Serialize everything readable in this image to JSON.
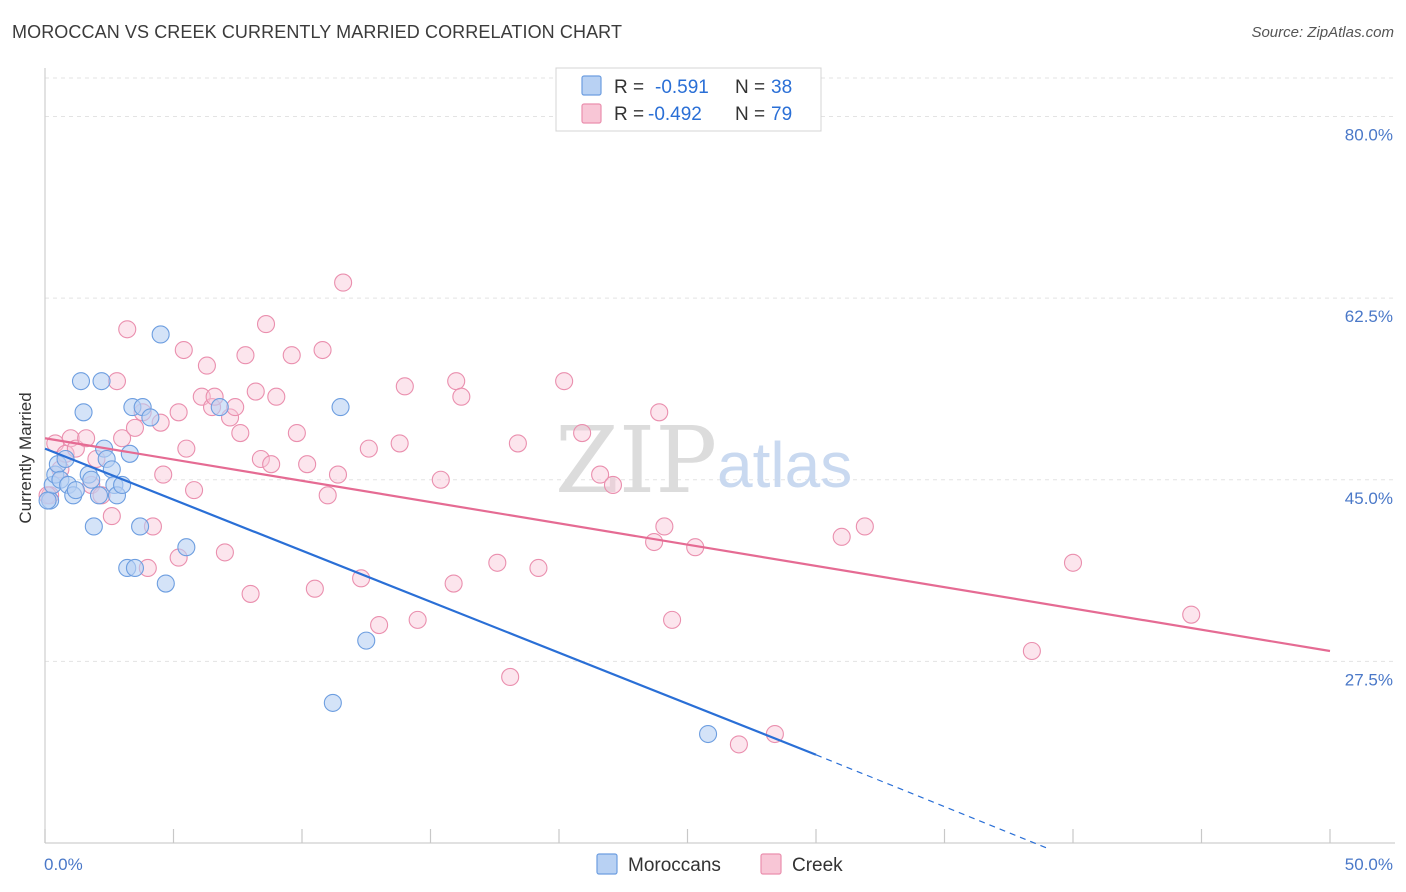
{
  "title": "MOROCCAN VS CREEK CURRENTLY MARRIED CORRELATION CHART",
  "source": "Source: ZipAtlas.com",
  "colors": {
    "moroccans_fill": "#b8d1f3",
    "moroccans_stroke": "#6d9ee0",
    "moroccans_line": "#2a6fd6",
    "creek_fill": "#f8c6d6",
    "creek_stroke": "#ea8fae",
    "creek_line": "#e56b93",
    "tick_text": "#4a78c8",
    "value_text": "#2a6fd6"
  },
  "legend": {
    "r_label": "R =",
    "n_label": "N =",
    "rows": [
      {
        "series": "Moroccans",
        "r": "-0.591",
        "n": "38"
      },
      {
        "series": "Creek",
        "r": "-0.492",
        "n": "79"
      }
    ]
  },
  "watermark": {
    "zip": "ZIP",
    "atlas": "atlas"
  },
  "chart_data": {
    "type": "scatter",
    "title": "MOROCCAN VS CREEK CURRENTLY MARRIED CORRELATION CHART",
    "xlabel": "",
    "ylabel": "Currently Married",
    "xlim": [
      0,
      50
    ],
    "ylim": [
      10,
      84
    ],
    "x_tick_labels": [
      "0.0%",
      "50.0%"
    ],
    "y_ticks": [
      27.5,
      45.0,
      62.5,
      80.0
    ],
    "y_tick_labels": [
      "27.5%",
      "45.0%",
      "62.5%",
      "80.0%"
    ],
    "grid": true,
    "legend_position": "bottom",
    "series": [
      {
        "name": "Moroccans",
        "points": [
          [
            0.2,
            43.0
          ],
          [
            0.3,
            44.5
          ],
          [
            0.4,
            45.5
          ],
          [
            0.5,
            46.5
          ],
          [
            0.6,
            45.0
          ],
          [
            0.8,
            47.0
          ],
          [
            0.9,
            44.5
          ],
          [
            1.1,
            43.5
          ],
          [
            1.2,
            44.0
          ],
          [
            1.4,
            54.5
          ],
          [
            1.5,
            51.5
          ],
          [
            1.7,
            45.5
          ],
          [
            1.8,
            45.0
          ],
          [
            1.9,
            40.5
          ],
          [
            2.1,
            43.5
          ],
          [
            2.2,
            54.5
          ],
          [
            2.3,
            48.0
          ],
          [
            2.4,
            47.0
          ],
          [
            2.6,
            46.0
          ],
          [
            2.7,
            44.5
          ],
          [
            2.8,
            43.5
          ],
          [
            3.0,
            44.5
          ],
          [
            3.2,
            36.5
          ],
          [
            3.3,
            47.5
          ],
          [
            3.4,
            52.0
          ],
          [
            3.5,
            36.5
          ],
          [
            3.7,
            40.5
          ],
          [
            3.8,
            52.0
          ],
          [
            4.1,
            51.0
          ],
          [
            4.7,
            35.0
          ],
          [
            4.5,
            59.0
          ],
          [
            5.5,
            38.5
          ],
          [
            6.8,
            52.0
          ],
          [
            11.5,
            52.0
          ],
          [
            12.5,
            29.5
          ],
          [
            11.2,
            23.5
          ],
          [
            25.8,
            20.5
          ],
          [
            0.1,
            43.0
          ]
        ],
        "trend": {
          "x": [
            0,
            30
          ],
          "y": [
            48.0,
            18.5
          ]
        },
        "trend_dashed": {
          "x": [
            30,
            39
          ],
          "y": [
            18.5,
            9.5
          ]
        }
      },
      {
        "name": "Creek",
        "points": [
          [
            0.2,
            43.5
          ],
          [
            0.4,
            48.5
          ],
          [
            0.6,
            46.0
          ],
          [
            0.8,
            47.5
          ],
          [
            1.0,
            49.0
          ],
          [
            1.2,
            48.0
          ],
          [
            1.6,
            49.0
          ],
          [
            1.8,
            44.5
          ],
          [
            2.0,
            47.0
          ],
          [
            2.2,
            43.5
          ],
          [
            2.6,
            41.5
          ],
          [
            2.8,
            54.5
          ],
          [
            3.0,
            49.0
          ],
          [
            3.2,
            59.5
          ],
          [
            3.5,
            50.0
          ],
          [
            3.8,
            51.5
          ],
          [
            4.0,
            36.5
          ],
          [
            4.2,
            40.5
          ],
          [
            4.5,
            50.5
          ],
          [
            4.6,
            45.5
          ],
          [
            5.2,
            51.5
          ],
          [
            5.2,
            37.5
          ],
          [
            5.4,
            57.5
          ],
          [
            5.5,
            48.0
          ],
          [
            5.8,
            44.0
          ],
          [
            6.1,
            53.0
          ],
          [
            6.3,
            56.0
          ],
          [
            6.5,
            52.0
          ],
          [
            6.6,
            53.0
          ],
          [
            7.0,
            38.0
          ],
          [
            7.2,
            51.0
          ],
          [
            7.4,
            52.0
          ],
          [
            7.6,
            49.5
          ],
          [
            7.8,
            57.0
          ],
          [
            8.0,
            34.0
          ],
          [
            8.2,
            53.5
          ],
          [
            8.4,
            47.0
          ],
          [
            8.6,
            60.0
          ],
          [
            8.8,
            46.5
          ],
          [
            9.0,
            53.0
          ],
          [
            9.6,
            57.0
          ],
          [
            9.8,
            49.5
          ],
          [
            10.2,
            46.5
          ],
          [
            10.5,
            34.5
          ],
          [
            10.8,
            57.5
          ],
          [
            11.0,
            43.5
          ],
          [
            11.4,
            45.5
          ],
          [
            11.6,
            64.0
          ],
          [
            12.3,
            35.5
          ],
          [
            12.6,
            48.0
          ],
          [
            13.0,
            31.0
          ],
          [
            13.8,
            48.5
          ],
          [
            14.0,
            54.0
          ],
          [
            14.5,
            31.5
          ],
          [
            15.4,
            45.0
          ],
          [
            15.9,
            35.0
          ],
          [
            16.0,
            54.5
          ],
          [
            16.2,
            53.0
          ],
          [
            17.6,
            37.0
          ],
          [
            18.1,
            26.0
          ],
          [
            18.4,
            48.5
          ],
          [
            19.2,
            36.5
          ],
          [
            20.2,
            54.5
          ],
          [
            20.9,
            49.5
          ],
          [
            21.6,
            45.5
          ],
          [
            22.1,
            44.5
          ],
          [
            23.7,
            39.0
          ],
          [
            23.9,
            51.5
          ],
          [
            24.1,
            40.5
          ],
          [
            24.4,
            31.5
          ],
          [
            25.3,
            38.5
          ],
          [
            27.0,
            19.5
          ],
          [
            28.4,
            20.5
          ],
          [
            31.0,
            39.5
          ],
          [
            31.9,
            40.5
          ],
          [
            38.4,
            28.5
          ],
          [
            40.0,
            37.0
          ],
          [
            44.6,
            32.0
          ],
          [
            0.1,
            43.5
          ]
        ],
        "trend": {
          "x": [
            0,
            50
          ],
          "y": [
            49.0,
            28.5
          ]
        }
      }
    ]
  }
}
